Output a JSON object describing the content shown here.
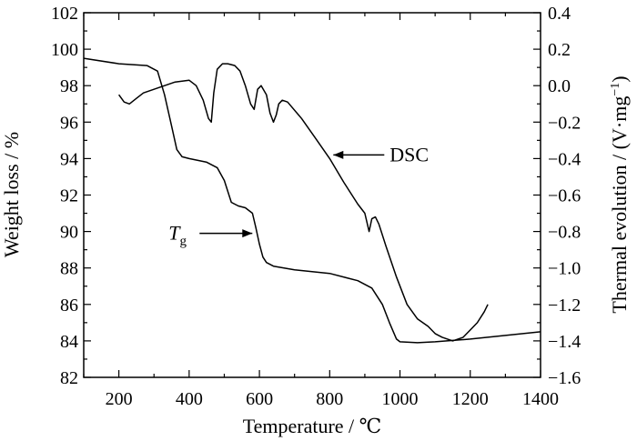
{
  "chart_data": {
    "type": "line",
    "xlabel": "Temperature / ℃",
    "ylabel_left": "Weight loss / %",
    "ylabel_right": "Thermal evolution / (V·mg",
    "ylabel_right_sup": "−1",
    "ylabel_right_close": ")",
    "xlim": [
      100,
      1400
    ],
    "ylim_left": [
      82,
      102
    ],
    "ylim_right": [
      -1.6,
      0.4
    ],
    "x_ticks": [
      200,
      400,
      600,
      800,
      1000,
      1200,
      1400
    ],
    "y_left_ticks": [
      82,
      84,
      86,
      88,
      90,
      92,
      94,
      96,
      98,
      100,
      102
    ],
    "y_right_ticks": [
      "−1.6",
      "−1.4",
      "−1.2",
      "−1.0",
      "−0.8",
      "−0.6",
      "−0.4",
      "−0.2",
      "0.0",
      "0.2",
      "0.4"
    ],
    "grid": false,
    "annotations": [
      {
        "text": "DSC",
        "target": "DSC",
        "arrow_to": [
          800,
          -0.38
        ]
      },
      {
        "text": "T",
        "subscript": "g",
        "target": "TG",
        "arrow_to": [
          585,
          89.9
        ]
      }
    ],
    "series": [
      {
        "name": "TG",
        "axis": "left",
        "x": [
          100,
          200,
          280,
          310,
          330,
          350,
          365,
          380,
          400,
          450,
          480,
          500,
          520,
          540,
          560,
          580,
          590,
          600,
          610,
          620,
          640,
          700,
          800,
          880,
          920,
          950,
          970,
          990,
          1000,
          1050,
          1100,
          1200,
          1300,
          1400
        ],
        "y": [
          99.5,
          99.2,
          99.1,
          98.8,
          97.5,
          95.8,
          94.5,
          94.1,
          94.0,
          93.8,
          93.5,
          92.8,
          91.6,
          91.4,
          91.3,
          91.0,
          90.2,
          89.3,
          88.6,
          88.3,
          88.1,
          87.9,
          87.7,
          87.3,
          86.9,
          86.0,
          85.0,
          84.1,
          83.95,
          83.9,
          83.95,
          84.1,
          84.3,
          84.5
        ]
      },
      {
        "name": "DSC",
        "axis": "right",
        "x": [
          200,
          215,
          230,
          250,
          270,
          300,
          330,
          360,
          400,
          420,
          440,
          455,
          463,
          470,
          480,
          495,
          510,
          530,
          545,
          560,
          575,
          585,
          595,
          605,
          620,
          630,
          640,
          648,
          655,
          665,
          680,
          720,
          760,
          800,
          840,
          880,
          900,
          912,
          920,
          930,
          940,
          960,
          990,
          1020,
          1050,
          1080,
          1100,
          1120,
          1150,
          1180,
          1200,
          1220,
          1240,
          1250
        ],
        "y": [
          -0.05,
          -0.09,
          -0.1,
          -0.07,
          -0.04,
          -0.02,
          0.0,
          0.02,
          0.03,
          0.0,
          -0.08,
          -0.18,
          -0.2,
          -0.04,
          0.09,
          0.12,
          0.12,
          0.11,
          0.08,
          0.0,
          -0.1,
          -0.13,
          -0.02,
          0.0,
          -0.05,
          -0.15,
          -0.2,
          -0.16,
          -0.1,
          -0.08,
          -0.09,
          -0.18,
          -0.29,
          -0.4,
          -0.53,
          -0.65,
          -0.7,
          -0.8,
          -0.73,
          -0.72,
          -0.76,
          -0.88,
          -1.05,
          -1.2,
          -1.28,
          -1.32,
          -1.36,
          -1.38,
          -1.4,
          -1.38,
          -1.34,
          -1.3,
          -1.24,
          -1.2
        ]
      }
    ]
  }
}
